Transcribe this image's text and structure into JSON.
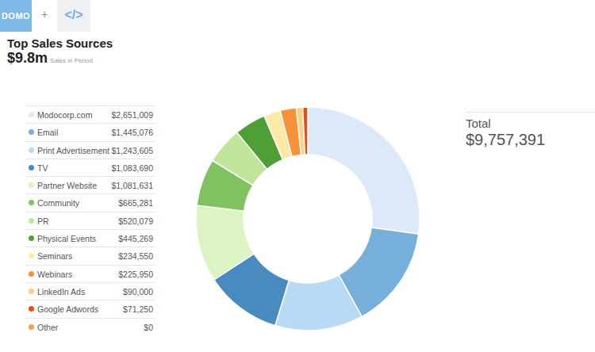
{
  "header": {
    "logos": [
      "DOMO",
      "+",
      "</>"
    ]
  },
  "chart_data": {
    "type": "donut",
    "title": "Top Sales Sources",
    "subtitle": "$9.8m",
    "annotations": [
      "Sales in Period",
      "Total",
      "$9,757,391"
    ],
    "legend": "left",
    "categories": [
      "Modocorp.com",
      "Email",
      "Print Advertisement",
      "TV",
      "Partner Website",
      "Community",
      "PR",
      "Physical Events",
      "Seminars",
      "Webinars",
      "LinkedIn Ads",
      "Google Adwords",
      "Other"
    ],
    "values": [
      2651009,
      1445076,
      1243605,
      1083690,
      1081631,
      665281,
      520079,
      445269,
      234550,
      225950,
      90000,
      71250,
      0
    ],
    "value_labels": [
      "$2,651,009",
      "$1,445,076",
      "$1,243,605",
      "$1,083,690",
      "$1,081,631",
      "$665,281",
      "$520,079",
      "$445,269",
      "$234,550",
      "$225,950",
      "$90,000",
      "$71,250",
      "$0"
    ],
    "colors": [
      "#dbe9f9",
      "#76b0da",
      "#b9daf4",
      "#4a8bbf",
      "#dcf3c3",
      "#80c25f",
      "#bfe49a",
      "#4e9f36",
      "#fde9a6",
      "#f8923a",
      "#fcd185",
      "#e2531c",
      "#f5a04a"
    ]
  }
}
